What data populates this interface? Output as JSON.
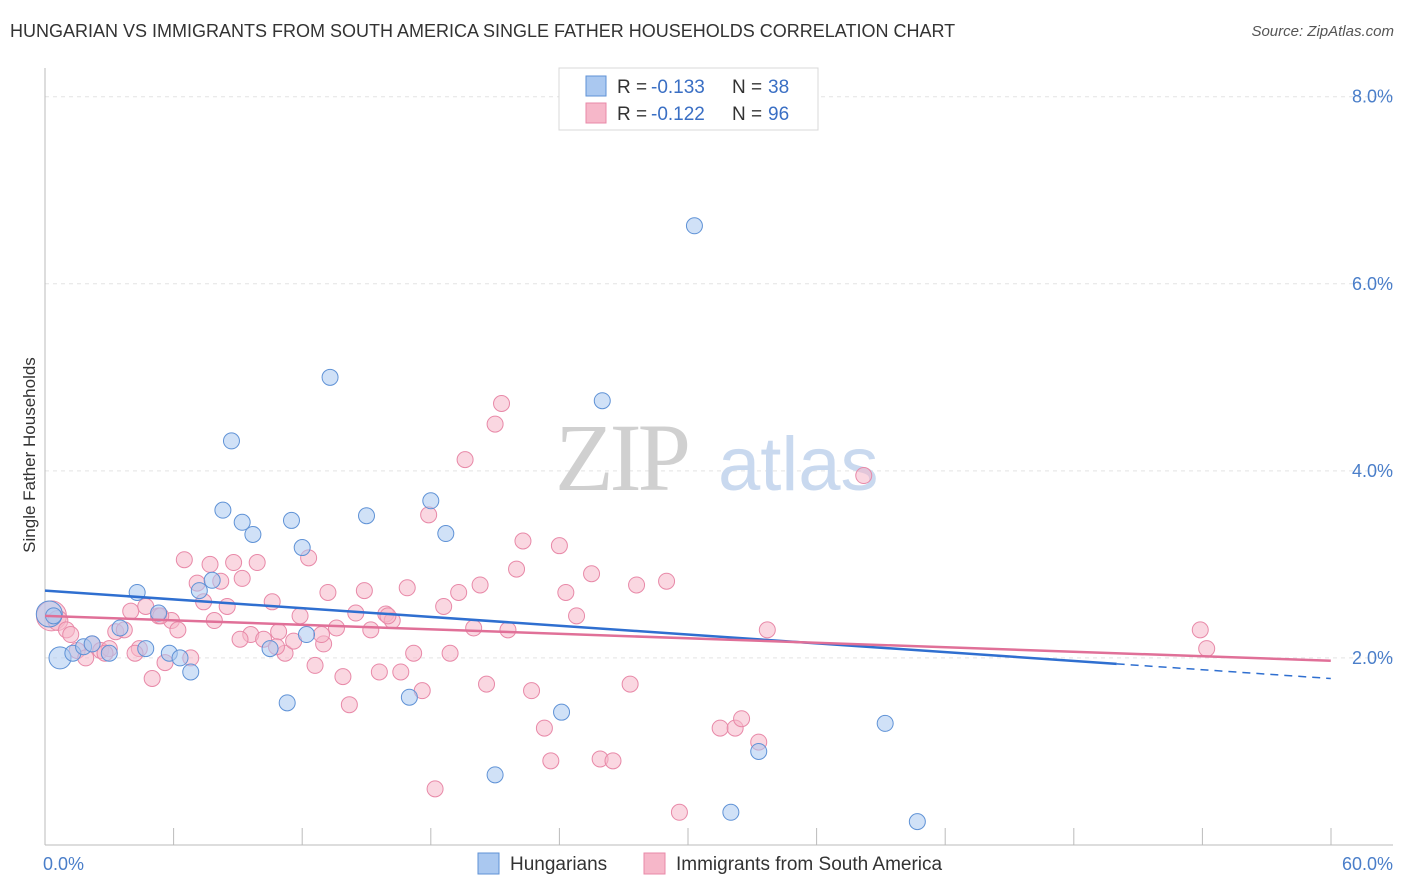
{
  "title": "HUNGARIAN VS IMMIGRANTS FROM SOUTH AMERICA SINGLE FATHER HOUSEHOLDS CORRELATION CHART",
  "source": "Source: ZipAtlas.com",
  "watermark": {
    "zip": "ZIP",
    "atlas": "atlas"
  },
  "colors": {
    "blue_fill": "#aac8f0",
    "blue_stroke": "#5f92d6",
    "blue_line": "#2f6fd0",
    "pink_fill": "#f6b7c9",
    "pink_stroke": "#e889a8",
    "pink_line": "#e07098",
    "grid": "#e3e3e3",
    "axis_label": "#4a7ec9"
  },
  "chart_data": {
    "type": "scatter",
    "title": "HUNGARIAN VS IMMIGRANTS FROM SOUTH AMERICA SINGLE FATHER HOUSEHOLDS CORRELATION CHART",
    "xlabel": "",
    "ylabel": "Single Father Households",
    "xlim": [
      0,
      60
    ],
    "ylim": [
      0,
      8.2
    ],
    "x_tick_labels": [
      "0.0%",
      "60.0%"
    ],
    "y_ticks": [
      2,
      4,
      6,
      8
    ],
    "y_tick_labels": [
      "2.0%",
      "4.0%",
      "6.0%",
      "8.0%"
    ],
    "legend": [
      {
        "r_label": "R =",
        "r_value": "-0.133",
        "n_label": "N =",
        "n_value": "38"
      },
      {
        "r_label": "R =",
        "r_value": "-0.122",
        "n_label": "N =",
        "n_value": "96"
      }
    ],
    "series": [
      {
        "name": "Hungarians",
        "trend": {
          "x0": 0,
          "y0": 2.72,
          "x1": 59.99,
          "y1": 1.78,
          "solid_until": 50
        },
        "points": [
          [
            0.2,
            2.47
          ],
          [
            0.7,
            2.0
          ],
          [
            1.3,
            2.05
          ],
          [
            1.8,
            2.12
          ],
          [
            2.2,
            2.15
          ],
          [
            3.0,
            2.05
          ],
          [
            3.5,
            2.32
          ],
          [
            4.3,
            2.7
          ],
          [
            4.7,
            2.1
          ],
          [
            5.3,
            2.48
          ],
          [
            5.8,
            2.05
          ],
          [
            6.3,
            2.0
          ],
          [
            6.8,
            1.85
          ],
          [
            7.2,
            2.72
          ],
          [
            7.8,
            2.83
          ],
          [
            8.3,
            3.58
          ],
          [
            8.7,
            4.32
          ],
          [
            9.2,
            3.45
          ],
          [
            9.7,
            3.32
          ],
          [
            10.5,
            2.1
          ],
          [
            11.3,
            1.52
          ],
          [
            11.5,
            3.47
          ],
          [
            12.0,
            3.18
          ],
          [
            12.2,
            2.25
          ],
          [
            13.3,
            5.0
          ],
          [
            15.0,
            3.52
          ],
          [
            17.0,
            1.58
          ],
          [
            18.0,
            3.68
          ],
          [
            18.7,
            3.33
          ],
          [
            21.0,
            0.75
          ],
          [
            24.1,
            1.42
          ],
          [
            26.0,
            4.75
          ],
          [
            30.3,
            6.62
          ],
          [
            32.0,
            0.35
          ],
          [
            33.3,
            1.0
          ],
          [
            39.2,
            1.3
          ],
          [
            40.7,
            0.25
          ],
          [
            0.4,
            2.45
          ]
        ],
        "sizes": [
          26,
          22,
          16,
          16,
          16,
          16,
          16,
          16,
          16,
          16,
          16,
          16,
          16,
          16,
          16,
          16,
          16,
          16,
          16,
          16,
          16,
          16,
          16,
          16,
          16,
          16,
          16,
          16,
          16,
          16,
          16,
          16,
          16,
          16,
          16,
          16,
          16,
          16
        ]
      },
      {
        "name": "Immigrants from South America",
        "trend": {
          "x0": 0,
          "y0": 2.45,
          "x1": 59.99,
          "y1": 1.97,
          "solid_until": 59.99
        },
        "points": [
          [
            0.3,
            2.45
          ],
          [
            0.6,
            2.4
          ],
          [
            1.0,
            2.3
          ],
          [
            1.2,
            2.25
          ],
          [
            1.5,
            2.08
          ],
          [
            1.9,
            2.0
          ],
          [
            2.2,
            2.15
          ],
          [
            2.6,
            2.08
          ],
          [
            3.0,
            2.1
          ],
          [
            3.3,
            2.28
          ],
          [
            3.7,
            2.3
          ],
          [
            4.0,
            2.5
          ],
          [
            4.4,
            2.1
          ],
          [
            4.7,
            2.55
          ],
          [
            5.0,
            1.78
          ],
          [
            5.3,
            2.45
          ],
          [
            5.6,
            1.95
          ],
          [
            5.9,
            2.4
          ],
          [
            6.2,
            2.3
          ],
          [
            6.5,
            3.05
          ],
          [
            6.8,
            2.0
          ],
          [
            7.1,
            2.8
          ],
          [
            7.4,
            2.6
          ],
          [
            7.7,
            3.0
          ],
          [
            7.9,
            2.4
          ],
          [
            8.2,
            2.82
          ],
          [
            8.5,
            2.55
          ],
          [
            8.8,
            3.02
          ],
          [
            9.2,
            2.85
          ],
          [
            9.6,
            2.25
          ],
          [
            9.9,
            3.02
          ],
          [
            10.2,
            2.2
          ],
          [
            10.6,
            2.6
          ],
          [
            10.9,
            2.28
          ],
          [
            11.2,
            2.05
          ],
          [
            11.6,
            2.18
          ],
          [
            11.9,
            2.45
          ],
          [
            12.3,
            3.07
          ],
          [
            12.6,
            1.92
          ],
          [
            13.0,
            2.15
          ],
          [
            13.2,
            2.7
          ],
          [
            13.6,
            2.32
          ],
          [
            13.9,
            1.8
          ],
          [
            14.2,
            1.5
          ],
          [
            14.5,
            2.48
          ],
          [
            14.9,
            2.72
          ],
          [
            15.2,
            2.3
          ],
          [
            15.6,
            1.85
          ],
          [
            15.9,
            2.47
          ],
          [
            16.2,
            2.4
          ],
          [
            16.6,
            1.85
          ],
          [
            16.9,
            2.75
          ],
          [
            17.2,
            2.05
          ],
          [
            17.6,
            1.65
          ],
          [
            17.9,
            3.53
          ],
          [
            18.2,
            0.6
          ],
          [
            18.6,
            2.55
          ],
          [
            18.9,
            2.05
          ],
          [
            19.3,
            2.7
          ],
          [
            19.6,
            4.12
          ],
          [
            20.0,
            2.32
          ],
          [
            20.3,
            2.78
          ],
          [
            20.6,
            1.72
          ],
          [
            21.0,
            4.5
          ],
          [
            21.3,
            4.72
          ],
          [
            21.6,
            2.3
          ],
          [
            22.0,
            2.95
          ],
          [
            22.3,
            3.25
          ],
          [
            22.7,
            1.65
          ],
          [
            23.3,
            1.25
          ],
          [
            23.6,
            0.9
          ],
          [
            24.0,
            3.2
          ],
          [
            24.3,
            2.7
          ],
          [
            24.8,
            2.45
          ],
          [
            25.5,
            2.9
          ],
          [
            25.9,
            0.92
          ],
          [
            26.5,
            0.9
          ],
          [
            27.3,
            1.72
          ],
          [
            27.6,
            2.78
          ],
          [
            29.0,
            2.82
          ],
          [
            29.6,
            0.35
          ],
          [
            31.5,
            1.25
          ],
          [
            32.2,
            1.25
          ],
          [
            32.5,
            1.35
          ],
          [
            33.3,
            1.1
          ],
          [
            33.7,
            2.3
          ],
          [
            38.2,
            3.95
          ],
          [
            53.9,
            2.3
          ],
          [
            54.2,
            2.1
          ],
          [
            2.8,
            2.05
          ],
          [
            4.2,
            2.05
          ],
          [
            5.4,
            2.45
          ],
          [
            9.1,
            2.2
          ],
          [
            10.8,
            2.12
          ],
          [
            12.9,
            2.25
          ],
          [
            16.0,
            2.45
          ]
        ],
        "sizes": [
          30,
          20,
          16,
          16,
          16,
          16,
          16,
          16,
          16,
          16,
          16,
          16,
          16,
          16,
          16,
          16,
          16,
          16,
          16,
          16,
          16,
          16,
          16,
          16,
          16,
          16,
          16,
          16,
          16,
          16,
          16,
          16,
          16,
          16,
          16,
          16,
          16,
          16,
          16,
          16,
          16,
          16,
          16,
          16,
          16,
          16,
          16,
          16,
          16,
          16,
          16,
          16,
          16,
          16,
          16,
          16,
          16,
          16,
          16,
          16,
          16,
          16,
          16,
          16,
          16,
          16,
          16,
          16,
          16,
          16,
          16,
          16,
          16,
          16,
          16,
          16,
          16,
          16,
          16,
          16,
          16,
          16,
          16,
          16,
          16,
          16,
          16,
          16,
          16,
          16,
          16,
          16,
          16,
          16,
          16,
          16
        ]
      }
    ]
  }
}
